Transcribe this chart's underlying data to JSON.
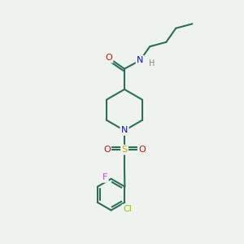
{
  "bg_color": "#eef3ee",
  "bond_color": "#2d6e5a",
  "atom_colors": {
    "N": "#1010cc",
    "O": "#cc1010",
    "S": "#ccaa00",
    "F": "#cc44cc",
    "Cl": "#88cc00",
    "H": "#888888",
    "C": "#2d6e5a"
  },
  "figsize": [
    3.0,
    3.0
  ],
  "dpi": 100
}
